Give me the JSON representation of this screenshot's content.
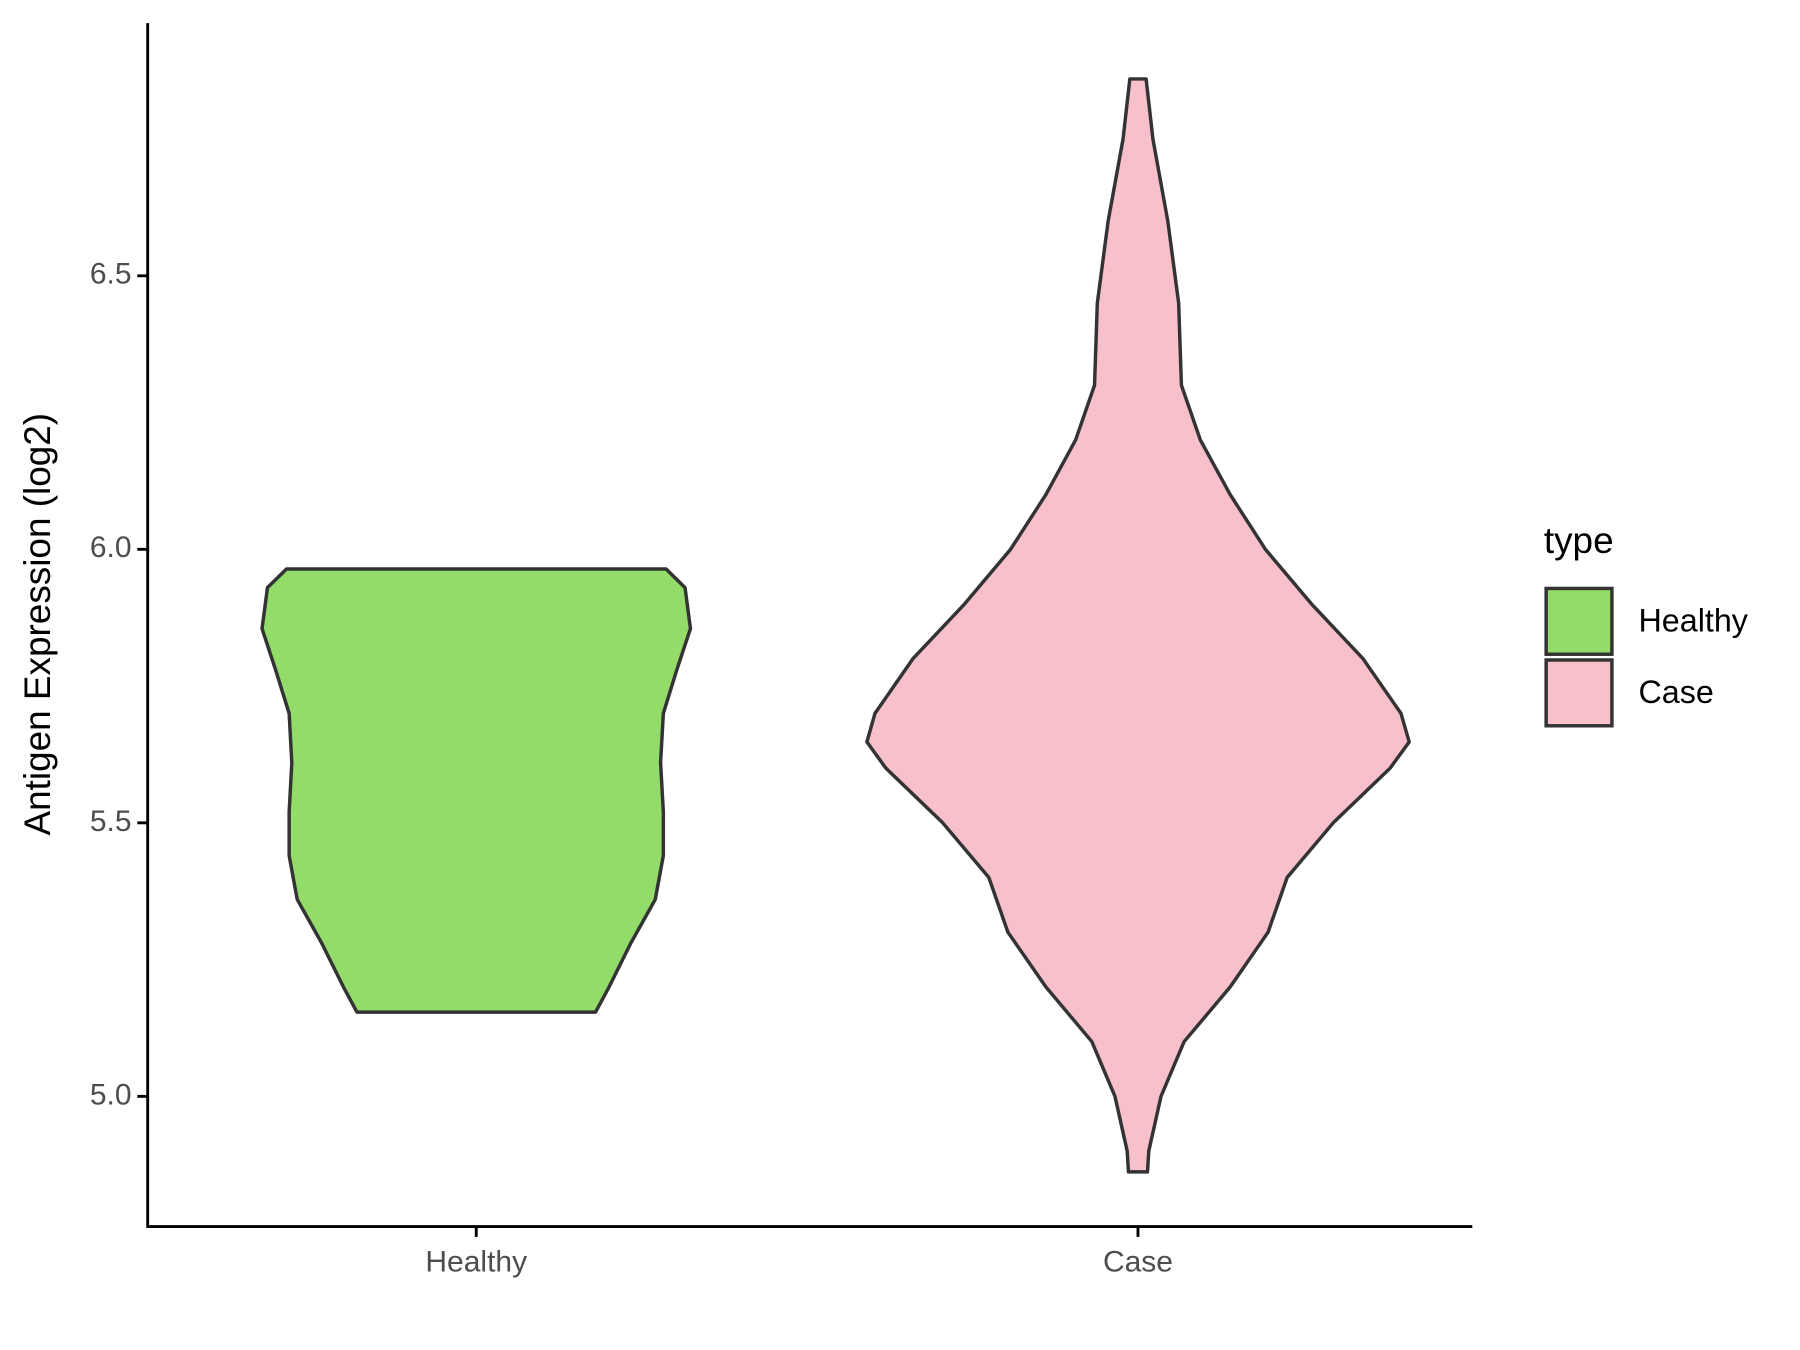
{
  "chart_data": {
    "type": "violin",
    "y_label": "Antigen Expression (log2)",
    "categories": [
      "Healthy",
      "Case"
    ],
    "legend_title": "type",
    "legend": "right",
    "series": [
      {
        "name": "Healthy",
        "color": "#93DC6A",
        "y": [
          5.964,
          5.93,
          5.855,
          5.78,
          5.7,
          5.61,
          5.52,
          5.44,
          5.36,
          5.28,
          5.2,
          5.154
        ],
        "width": [
          0.7,
          0.77,
          0.79,
          0.74,
          0.69,
          0.68,
          0.69,
          0.69,
          0.66,
          0.57,
          0.49,
          0.44
        ]
      },
      {
        "name": "Case",
        "color": "#F7C0CB",
        "y": [
          6.86,
          6.75,
          6.6,
          6.45,
          6.3,
          6.2,
          6.1,
          6.0,
          5.9,
          5.8,
          5.7,
          5.648,
          5.6,
          5.5,
          5.4,
          5.3,
          5.2,
          5.1,
          5.0,
          4.9,
          4.862
        ],
        "width": [
          0.03,
          0.055,
          0.11,
          0.15,
          0.16,
          0.23,
          0.34,
          0.47,
          0.64,
          0.83,
          0.97,
          1.0,
          0.93,
          0.72,
          0.55,
          0.48,
          0.34,
          0.17,
          0.085,
          0.04,
          0.035
        ]
      }
    ],
    "ylim": [
      4.762,
      6.962
    ],
    "yticks": [
      {
        "value": 5,
        "label": "5.0"
      },
      5.5,
      {
        "value": 6,
        "label": "6.0"
      },
      6.5
    ]
  }
}
